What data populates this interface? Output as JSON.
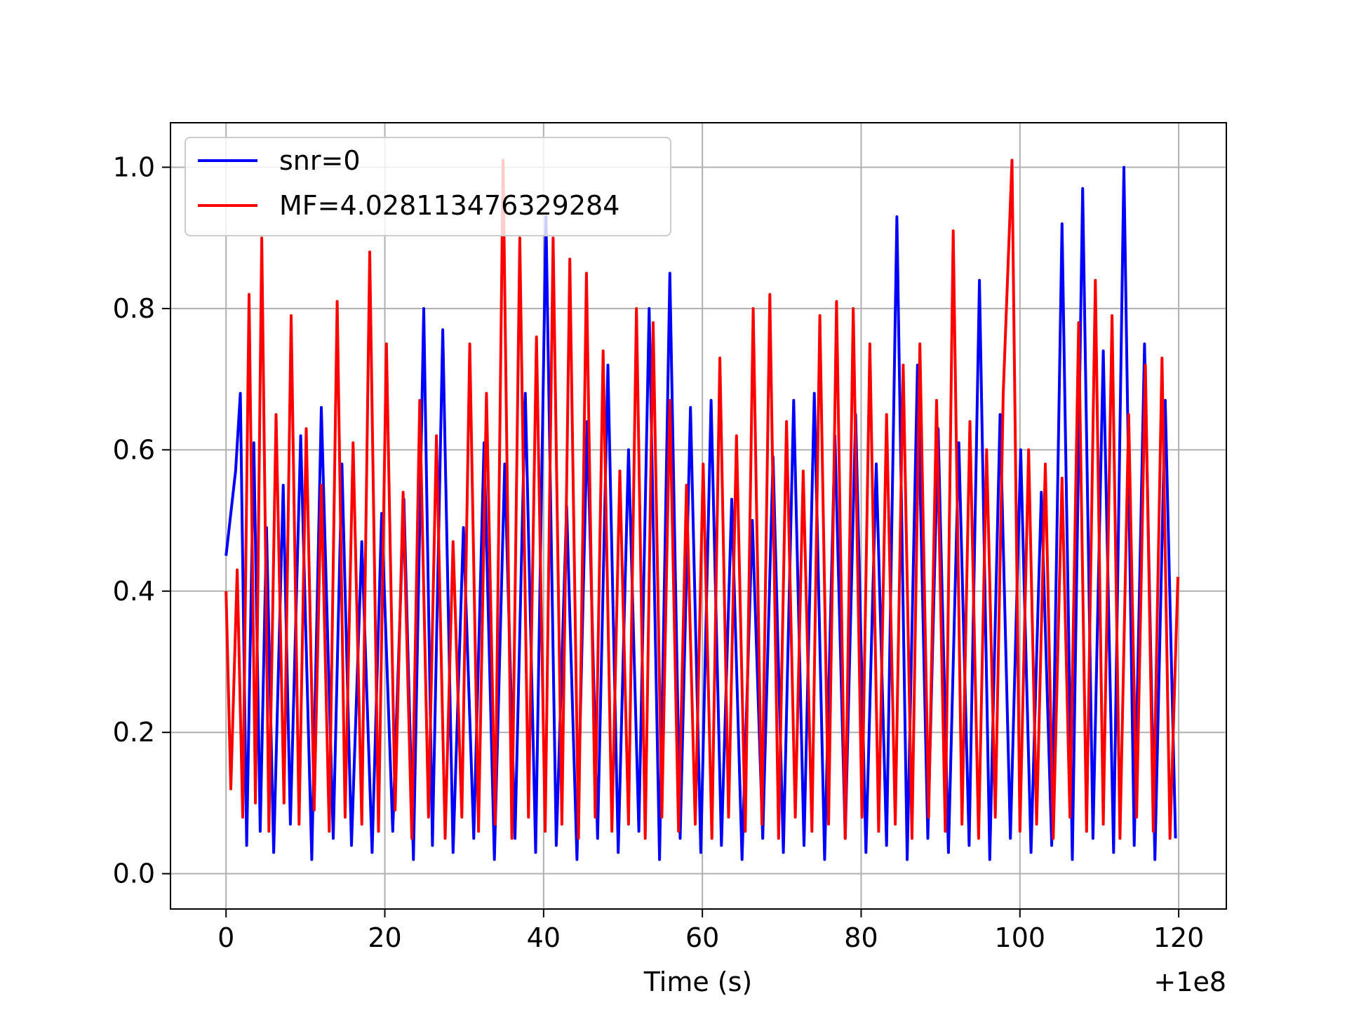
{
  "chart_data": {
    "type": "line",
    "xlabel": "Time (s)",
    "ylabel": "",
    "x_offset_label": "+1e8",
    "xlim": [
      -7,
      126
    ],
    "ylim": [
      -0.05,
      1.063
    ],
    "x_ticks": [
      {
        "value": 0,
        "label": "0"
      },
      {
        "value": 20,
        "label": "20"
      },
      {
        "value": 40,
        "label": "40"
      },
      {
        "value": 60,
        "label": "60"
      },
      {
        "value": 80,
        "label": "80"
      },
      {
        "value": 100,
        "label": "100"
      },
      {
        "value": 120,
        "label": "120"
      }
    ],
    "y_ticks": [
      {
        "value": 0.0,
        "label": "0.0"
      },
      {
        "value": 0.2,
        "label": "0.2"
      },
      {
        "value": 0.4,
        "label": "0.4"
      },
      {
        "value": 0.6,
        "label": "0.6"
      },
      {
        "value": 0.8,
        "label": "0.8"
      },
      {
        "value": 1.0,
        "label": "1.0"
      }
    ],
    "grid": true,
    "legend_position": "upper-left",
    "series": [
      {
        "name": "snr=0",
        "color": "#0000ff",
        "x": [
          0,
          1.2,
          1.8,
          2.6,
          3.5,
          4.3,
          5.1,
          6.0,
          7.2,
          8.1,
          9.4,
          10.8,
          12.0,
          13.5,
          14.6,
          15.8,
          17.1,
          18.4,
          19.6,
          21.0,
          22.4,
          23.6,
          24.9,
          26.0,
          27.3,
          28.6,
          29.9,
          31.2,
          32.5,
          33.8,
          35.1,
          36.4,
          37.7,
          39.0,
          40.3,
          41.6,
          42.9,
          44.2,
          45.5,
          46.8,
          48.1,
          49.4,
          50.7,
          52.0,
          53.3,
          54.6,
          55.9,
          57.2,
          58.5,
          59.8,
          61.1,
          62.4,
          63.7,
          65.0,
          66.3,
          67.6,
          68.9,
          70.2,
          71.5,
          72.8,
          74.1,
          75.4,
          76.7,
          78.0,
          79.3,
          80.6,
          81.9,
          83.2,
          84.5,
          85.8,
          87.1,
          88.4,
          89.7,
          91.0,
          92.3,
          93.6,
          94.9,
          96.2,
          97.5,
          98.8,
          100.1,
          101.4,
          102.7,
          104.0,
          105.3,
          106.6,
          107.9,
          109.2,
          110.5,
          111.8,
          113.1,
          114.4,
          115.7,
          117.0,
          118.3,
          119.6
        ],
        "y": [
          0.45,
          0.57,
          0.68,
          0.04,
          0.61,
          0.06,
          0.49,
          0.03,
          0.55,
          0.07,
          0.62,
          0.02,
          0.66,
          0.05,
          0.58,
          0.04,
          0.47,
          0.03,
          0.51,
          0.06,
          0.53,
          0.02,
          0.8,
          0.04,
          0.77,
          0.03,
          0.49,
          0.05,
          0.61,
          0.02,
          0.58,
          0.05,
          0.68,
          0.03,
          0.93,
          0.04,
          0.52,
          0.02,
          0.64,
          0.05,
          0.72,
          0.03,
          0.6,
          0.06,
          0.8,
          0.02,
          0.85,
          0.05,
          0.66,
          0.03,
          0.67,
          0.04,
          0.53,
          0.02,
          0.5,
          0.05,
          0.59,
          0.03,
          0.67,
          0.04,
          0.68,
          0.02,
          0.62,
          0.05,
          0.65,
          0.03,
          0.58,
          0.04,
          0.93,
          0.02,
          0.72,
          0.05,
          0.63,
          0.03,
          0.61,
          0.04,
          0.84,
          0.02,
          0.65,
          0.05,
          0.6,
          0.03,
          0.54,
          0.04,
          0.92,
          0.02,
          0.97,
          0.05,
          0.74,
          0.03,
          1.0,
          0.04,
          0.75,
          0.02,
          0.67,
          0.05
        ]
      },
      {
        "name": "MF=4.028113476329284",
        "color": "#ff0000",
        "x": [
          0,
          0.6,
          1.4,
          2.1,
          2.9,
          3.7,
          4.5,
          5.4,
          6.3,
          7.3,
          8.2,
          9.2,
          10.1,
          11.1,
          12.0,
          13.0,
          14.0,
          15.0,
          16.0,
          17.1,
          18.1,
          19.2,
          20.2,
          21.3,
          22.3,
          23.4,
          24.4,
          25.5,
          26.5,
          27.6,
          28.6,
          29.7,
          30.7,
          31.8,
          32.8,
          33.9,
          34.9,
          36.0,
          37.0,
          38.1,
          39.1,
          40.2,
          41.2,
          42.3,
          43.3,
          44.4,
          45.4,
          46.5,
          47.5,
          48.6,
          49.6,
          50.7,
          51.7,
          52.8,
          53.8,
          54.9,
          55.9,
          57.0,
          58.0,
          59.1,
          60.1,
          61.2,
          62.2,
          63.3,
          64.3,
          65.4,
          66.4,
          67.5,
          68.5,
          69.6,
          70.6,
          71.7,
          72.7,
          73.8,
          74.8,
          75.9,
          76.9,
          78.0,
          79.0,
          80.1,
          81.1,
          82.2,
          83.2,
          84.3,
          85.3,
          86.4,
          87.4,
          88.5,
          89.5,
          90.6,
          91.6,
          92.7,
          93.7,
          94.8,
          95.8,
          96.9,
          97.9,
          99.0,
          100.0,
          101.1,
          102.1,
          103.2,
          104.2,
          105.3,
          106.3,
          107.4,
          108.4,
          109.5,
          110.5,
          111.6,
          112.6,
          113.7,
          114.7,
          115.8,
          116.8,
          117.9,
          118.9,
          119.9
        ],
        "y": [
          0.4,
          0.12,
          0.43,
          0.08,
          0.82,
          0.1,
          0.9,
          0.06,
          0.65,
          0.1,
          0.79,
          0.07,
          0.63,
          0.09,
          0.55,
          0.06,
          0.81,
          0.08,
          0.61,
          0.07,
          0.88,
          0.06,
          0.75,
          0.09,
          0.54,
          0.05,
          0.67,
          0.08,
          0.62,
          0.05,
          0.47,
          0.08,
          0.75,
          0.06,
          0.68,
          0.07,
          1.01,
          0.05,
          0.9,
          0.08,
          0.76,
          0.06,
          0.9,
          0.07,
          0.87,
          0.05,
          0.85,
          0.08,
          0.74,
          0.06,
          0.57,
          0.07,
          0.8,
          0.05,
          0.78,
          0.08,
          0.67,
          0.06,
          0.55,
          0.07,
          0.58,
          0.05,
          0.73,
          0.08,
          0.62,
          0.06,
          0.8,
          0.07,
          0.82,
          0.05,
          0.64,
          0.08,
          0.57,
          0.06,
          0.79,
          0.07,
          0.81,
          0.05,
          0.8,
          0.08,
          0.75,
          0.06,
          0.65,
          0.07,
          0.72,
          0.05,
          0.75,
          0.08,
          0.67,
          0.06,
          0.91,
          0.07,
          0.64,
          0.05,
          0.6,
          0.08,
          0.68,
          1.01,
          0.06,
          0.6,
          0.07,
          0.58,
          0.05,
          0.56,
          0.08,
          0.78,
          0.06,
          0.84,
          0.07,
          0.79,
          0.05,
          0.65,
          0.08,
          0.72,
          0.06,
          0.73,
          0.05,
          0.42
        ]
      }
    ]
  }
}
